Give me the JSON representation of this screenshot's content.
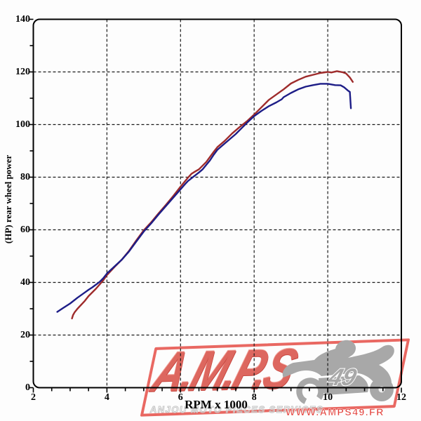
{
  "chart_data": {
    "type": "line",
    "title": "",
    "xlabel": "RPM x 1000",
    "ylabel": "(HP) rear wheel power",
    "xlim": [
      2,
      12
    ],
    "ylim": [
      0,
      140
    ],
    "x_major_ticks": [
      2,
      4,
      6,
      8,
      10,
      12
    ],
    "x_minor_step": 0.5,
    "y_major_ticks": [
      0,
      20,
      40,
      60,
      80,
      100,
      120,
      140
    ],
    "y_minor_step": 10,
    "grid": "dashed black lines at x majors (4,6,8,10) and y majors (20-120)",
    "legend_position": "none",
    "series": [
      {
        "name": "run-red",
        "color": "#9e2b2b",
        "peak_hp": 120.3,
        "points": [
          [
            3.05,
            26.3
          ],
          [
            3.08,
            27.6
          ],
          [
            3.12,
            28.6
          ],
          [
            3.2,
            30
          ],
          [
            3.4,
            33
          ],
          [
            3.5,
            34.8
          ],
          [
            3.7,
            37.6
          ],
          [
            3.9,
            40.8
          ],
          [
            4.0,
            42.8
          ],
          [
            4.2,
            45.8
          ],
          [
            4.4,
            48.6
          ],
          [
            4.6,
            52
          ],
          [
            4.8,
            56
          ],
          [
            5.0,
            59.8
          ],
          [
            5.2,
            62.8
          ],
          [
            5.4,
            66.2
          ],
          [
            5.6,
            69.4
          ],
          [
            5.8,
            72.8
          ],
          [
            6.0,
            76.4
          ],
          [
            6.2,
            79.8
          ],
          [
            6.3,
            81.3
          ],
          [
            6.4,
            82.2
          ],
          [
            6.5,
            83
          ],
          [
            6.7,
            85.8
          ],
          [
            6.9,
            89.6
          ],
          [
            7.0,
            91.4
          ],
          [
            7.2,
            93.8
          ],
          [
            7.4,
            96.6
          ],
          [
            7.6,
            99
          ],
          [
            7.8,
            101.2
          ],
          [
            8.0,
            103.8
          ],
          [
            8.2,
            106.6
          ],
          [
            8.4,
            109.4
          ],
          [
            8.6,
            111.4
          ],
          [
            8.8,
            113.4
          ],
          [
            9.0,
            115.6
          ],
          [
            9.2,
            117
          ],
          [
            9.4,
            118.2
          ],
          [
            9.6,
            118.9
          ],
          [
            9.8,
            119.6
          ],
          [
            10.0,
            120
          ],
          [
            10.1,
            119.8
          ],
          [
            10.25,
            120.3
          ],
          [
            10.4,
            119.9
          ],
          [
            10.5,
            119.4
          ],
          [
            10.6,
            117.9
          ],
          [
            10.68,
            116.2
          ]
        ]
      },
      {
        "name": "run-blue",
        "color": "#1d1d87",
        "peak_hp": 115.5,
        "points": [
          [
            2.65,
            28.8
          ],
          [
            2.8,
            30.2
          ],
          [
            3.0,
            32
          ],
          [
            3.2,
            34.2
          ],
          [
            3.4,
            36.2
          ],
          [
            3.5,
            37.2
          ],
          [
            3.6,
            38.1
          ],
          [
            3.8,
            40.2
          ],
          [
            3.9,
            41.6
          ],
          [
            4.0,
            43.4
          ],
          [
            4.2,
            46
          ],
          [
            4.4,
            48.6
          ],
          [
            4.6,
            51.8
          ],
          [
            4.8,
            55.6
          ],
          [
            5.0,
            59.3
          ],
          [
            5.2,
            62.4
          ],
          [
            5.4,
            65.8
          ],
          [
            5.6,
            69
          ],
          [
            5.8,
            72.2
          ],
          [
            6.0,
            75.4
          ],
          [
            6.1,
            77
          ],
          [
            6.2,
            78.5
          ],
          [
            6.35,
            80.2
          ],
          [
            6.5,
            81.8
          ],
          [
            6.6,
            83
          ],
          [
            6.8,
            86.4
          ],
          [
            6.9,
            88.5
          ],
          [
            7.0,
            90.4
          ],
          [
            7.1,
            91.6
          ],
          [
            7.3,
            94
          ],
          [
            7.5,
            96.4
          ],
          [
            7.6,
            97.8
          ],
          [
            7.8,
            100.6
          ],
          [
            8.0,
            103.2
          ],
          [
            8.2,
            105.2
          ],
          [
            8.4,
            107
          ],
          [
            8.6,
            108.4
          ],
          [
            8.75,
            109.6
          ],
          [
            8.8,
            110.4
          ],
          [
            9.0,
            112
          ],
          [
            9.2,
            113.4
          ],
          [
            9.4,
            114.4
          ],
          [
            9.6,
            115
          ],
          [
            9.8,
            115.5
          ],
          [
            10.0,
            115.5
          ],
          [
            10.2,
            115
          ],
          [
            10.35,
            114.9
          ],
          [
            10.45,
            114.1
          ],
          [
            10.55,
            112.9
          ],
          [
            10.6,
            112.4
          ],
          [
            10.63,
            106.2
          ]
        ]
      }
    ]
  },
  "axes_text": {
    "x_title": "RPM x 1000",
    "y_title": "(HP) rear wheel power"
  },
  "watermark": {
    "logo_text": "A.M.P.S",
    "number": "49",
    "tagline": "ANJOU MOTO PIECES SERVICES",
    "website": "WWW.AMPS49.FR",
    "logo_color": "#dd675f",
    "border_color": "#e54d47",
    "silhouette_color": "#a8a8a8",
    "tagline_color": "#c5c5c5",
    "website_color": "#e23c36"
  },
  "colors": {
    "background": "#fdfdfd",
    "axis": "#000000",
    "grid": "#1a1a1a"
  }
}
